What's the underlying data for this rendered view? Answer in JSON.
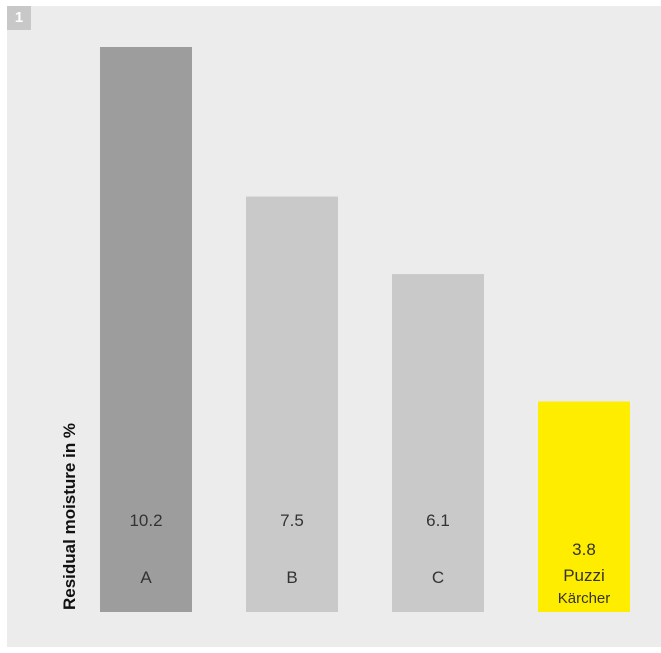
{
  "figure": {
    "badge": "1"
  },
  "chart_data": {
    "type": "bar",
    "ylabel": "Residual moisture in %",
    "categories": [
      "A",
      "B",
      "C",
      "Puzzi"
    ],
    "values": [
      10.2,
      7.5,
      6.1,
      3.8
    ],
    "value_labels": [
      "10.2",
      "7.5",
      "6.1",
      "3.8"
    ],
    "sublabels": [
      "",
      "",
      "",
      "Kärcher"
    ],
    "ylim": [
      0,
      10.2
    ],
    "grid": false,
    "colors": [
      "#9d9d9e",
      "#c9c9c9",
      "#c9c9c9",
      "#ffed00"
    ]
  }
}
